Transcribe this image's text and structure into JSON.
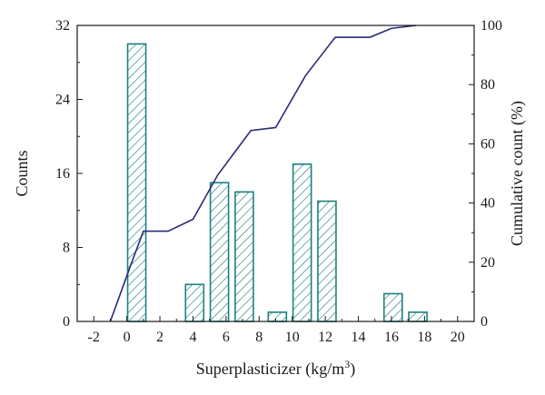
{
  "chart_data": {
    "type": "bar",
    "xlabel": "Superplasticizer (kg/m",
    "xlabel_sup": "3",
    "xlabel_end": ")",
    "ylabel": "Counts",
    "y2label": "Cumulative count (%)",
    "xlim": [
      -3,
      21
    ],
    "ylim": [
      0,
      32
    ],
    "y2lim": [
      0,
      100
    ],
    "x_ticks": [
      -2,
      0,
      2,
      4,
      6,
      8,
      10,
      12,
      14,
      16,
      18,
      20
    ],
    "y_ticks": [
      0,
      8,
      16,
      24,
      32
    ],
    "y2_ticks": [
      0,
      20,
      40,
      60,
      80,
      100
    ],
    "bar_width": 1.1,
    "bars": [
      {
        "x": 0.6,
        "count": 30
      },
      {
        "x": 4.1,
        "count": 4
      },
      {
        "x": 5.6,
        "count": 15
      },
      {
        "x": 7.1,
        "count": 14
      },
      {
        "x": 9.1,
        "count": 1
      },
      {
        "x": 10.6,
        "count": 17
      },
      {
        "x": 12.1,
        "count": 13
      },
      {
        "x": 16.1,
        "count": 3
      },
      {
        "x": 17.6,
        "count": 1
      }
    ],
    "cumulative": {
      "x": [
        -1,
        0.3,
        1.0,
        2.5,
        4.0,
        5.5,
        7.5,
        9.0,
        10.8,
        12.6,
        14.7,
        16.0,
        17.5
      ],
      "y": [
        0,
        20,
        30.5,
        30.5,
        34.5,
        49.5,
        64.5,
        65.5,
        83,
        96,
        96,
        99,
        100
      ]
    }
  }
}
